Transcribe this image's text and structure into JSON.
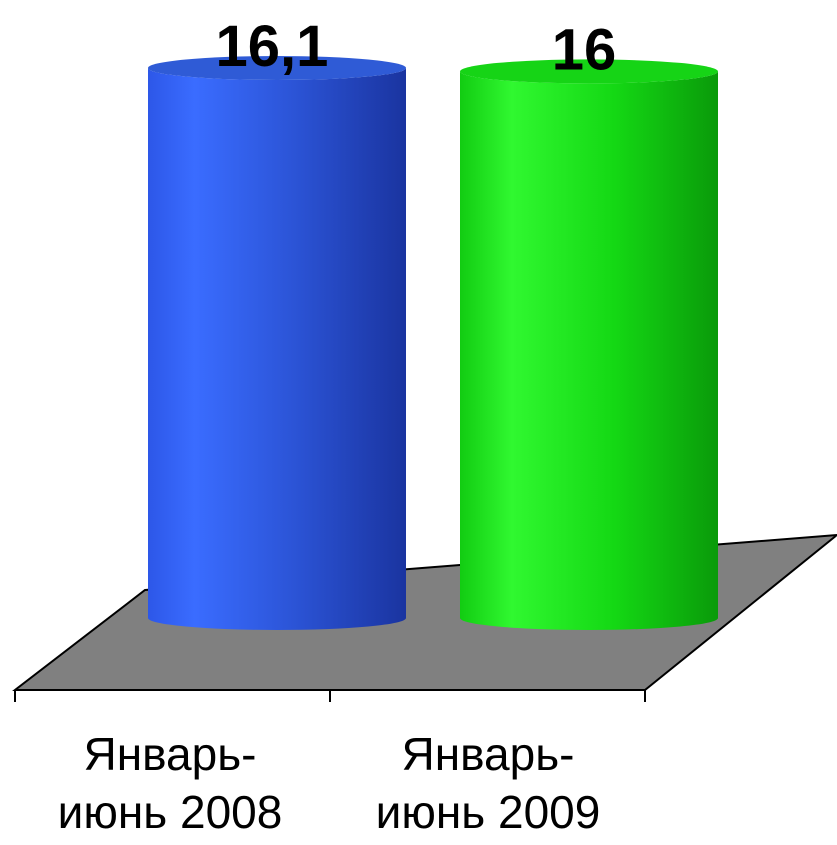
{
  "chart_data": {
    "type": "bar",
    "style": "3d-cylinder",
    "categories": [
      [
        "Январь-",
        "июнь 2008"
      ],
      [
        "Январь-",
        "июнь 2009"
      ]
    ],
    "values": [
      16.1,
      16
    ],
    "data_labels": [
      "16,1",
      "16"
    ],
    "colors": [
      "#2f5bd6",
      "#16d416"
    ],
    "floor_color": "#808080",
    "title": "",
    "xlabel": "",
    "ylabel": "",
    "ylim": [
      0,
      16.1
    ],
    "grid": false,
    "legend": false
  }
}
